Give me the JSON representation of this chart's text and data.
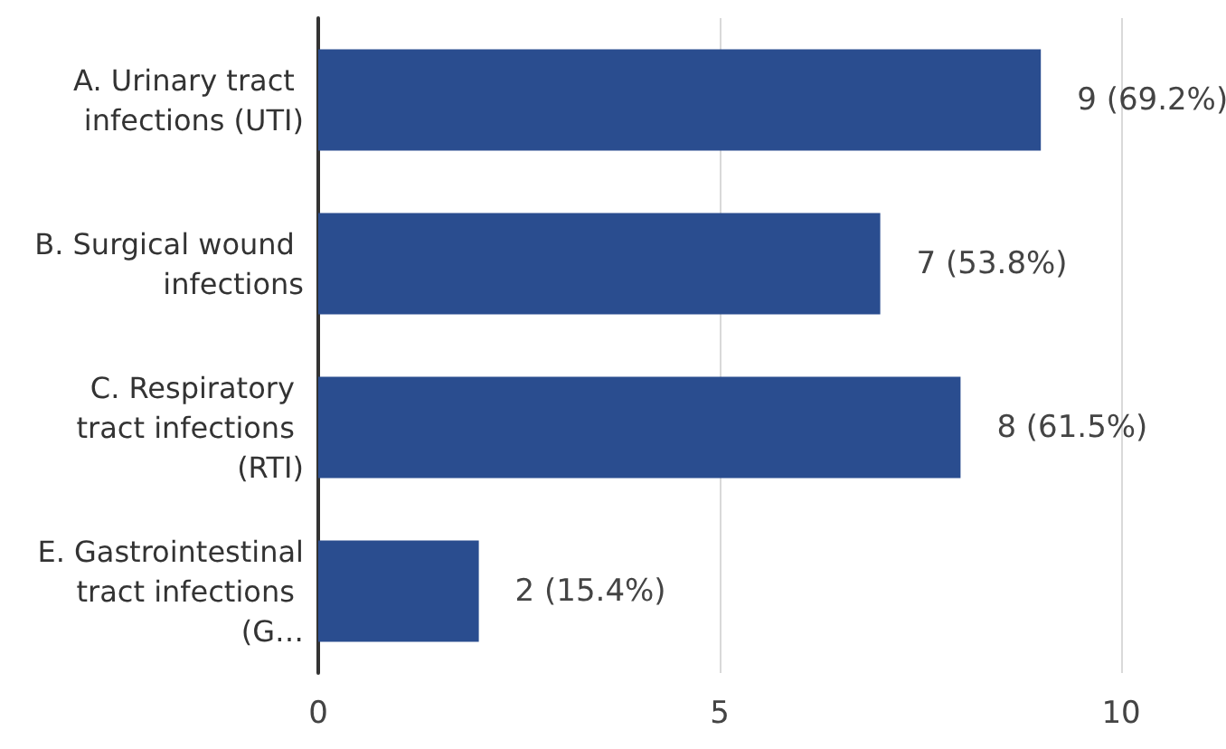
{
  "chart_data": {
    "type": "bar",
    "orientation": "horizontal",
    "categories": [
      "A. Urinary tract infections (UTI)",
      "B. Surgical wound infections",
      "C. Respiratory tract infections (RTI)",
      "E. Gastrointestinal tract infections (G…"
    ],
    "values": [
      9,
      7,
      8,
      2
    ],
    "value_labels": [
      "9 (69.2%)",
      "7 (53.8%)",
      "8 (61.5%)",
      "2 (15.4%)"
    ],
    "color": "#2a4d8f",
    "xlim": [
      0,
      10
    ],
    "xticks": [
      0,
      5,
      10
    ],
    "grid": "x"
  }
}
